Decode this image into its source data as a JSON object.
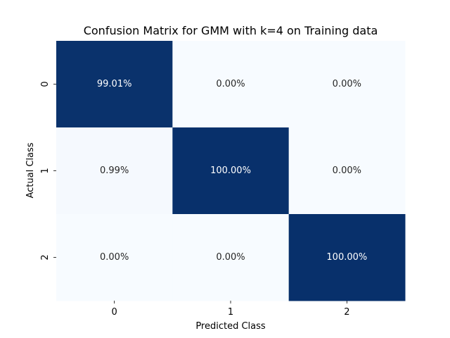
{
  "chart_data": {
    "type": "heatmap",
    "title": "Confusion Matrix for GMM with k=4 on Training data",
    "xlabel": "Predicted Class",
    "ylabel": "Actual Class",
    "x_categories": [
      "0",
      "1",
      "2"
    ],
    "y_categories": [
      "0",
      "1",
      "2"
    ],
    "values": [
      [
        99.01,
        0.0,
        0.0
      ],
      [
        0.99,
        100.0,
        0.0
      ],
      [
        0.0,
        0.0,
        100.0
      ]
    ],
    "labels": [
      [
        "99.01%",
        "0.00%",
        "0.00%"
      ],
      [
        "0.99%",
        "100.00%",
        "0.00%"
      ],
      [
        "0.00%",
        "0.00%",
        "100.00%"
      ]
    ],
    "colormap": "Blues",
    "colorbar": false,
    "color_low": "#f7fbff",
    "color_high": "#08306b"
  }
}
